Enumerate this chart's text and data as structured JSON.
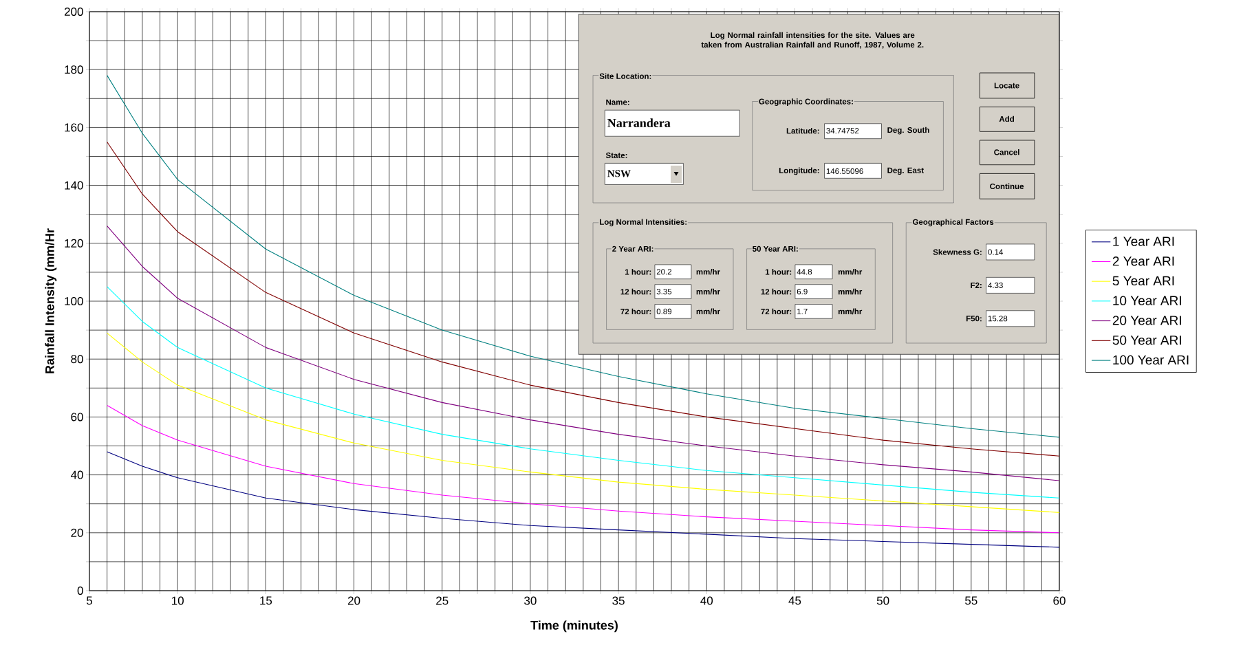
{
  "chart_data": {
    "type": "line",
    "xlabel": "Time (minutes)",
    "ylabel": "Rainfall Intensity (mm/Hr",
    "x": [
      6,
      8,
      10,
      15,
      20,
      25,
      30,
      35,
      40,
      45,
      50,
      55,
      60
    ],
    "series": [
      {
        "name": "1 Year ARI",
        "color": "#000080",
        "values": [
          48,
          43,
          39,
          32,
          28,
          25,
          22.5,
          21,
          19.5,
          18,
          17,
          16,
          15
        ]
      },
      {
        "name": "2 Year ARI",
        "color": "#ff00ff",
        "values": [
          64,
          57,
          52,
          43,
          37,
          33,
          30,
          27.5,
          25.5,
          24,
          22.5,
          21,
          20
        ]
      },
      {
        "name": "5 Year ARI",
        "color": "#ffff00",
        "values": [
          89,
          79,
          71,
          59,
          51,
          45,
          41,
          37.5,
          35,
          33,
          31,
          29,
          27
        ]
      },
      {
        "name": "10 Year ARI",
        "color": "#00ffff",
        "values": [
          105,
          93,
          84,
          70,
          61,
          54,
          49,
          45,
          41.5,
          39,
          36.5,
          34,
          32
        ]
      },
      {
        "name": "20 Year ARI",
        "color": "#800080",
        "values": [
          126,
          112,
          101,
          84,
          73,
          65,
          59,
          54,
          50,
          46.5,
          43.5,
          41,
          38
        ]
      },
      {
        "name": "50 Year ARI",
        "color": "#800000",
        "values": [
          155,
          137,
          124,
          103,
          89,
          79,
          71,
          65,
          60,
          56,
          52,
          49,
          46.5
        ]
      },
      {
        "name": "100 Year ARI",
        "color": "#008080",
        "values": [
          178,
          158,
          142,
          118,
          102,
          90,
          81,
          74,
          68,
          63,
          59.5,
          56,
          53
        ]
      }
    ],
    "xlim": [
      5,
      60
    ],
    "xticks": [
      5,
      {
        "value": 6,
        "label": null
      },
      {
        "value": 7,
        "label": null
      },
      {
        "value": 8,
        "label": null
      },
      {
        "value": 9,
        "label": null
      },
      10,
      {
        "value": 11,
        "label": null
      },
      {
        "value": 12,
        "label": null
      },
      {
        "value": 13,
        "label": null
      },
      {
        "value": 14,
        "label": null
      },
      15,
      {
        "value": 16,
        "label": null
      },
      {
        "value": 17,
        "label": null
      },
      {
        "value": 18,
        "label": null
      },
      {
        "value": 19,
        "label": null
      },
      20,
      {
        "value": 21,
        "label": null
      },
      {
        "value": 22,
        "label": null
      },
      {
        "value": 23,
        "label": null
      },
      {
        "value": 24,
        "label": null
      },
      25,
      {
        "value": 26,
        "label": null
      },
      {
        "value": 27,
        "label": null
      },
      {
        "value": 28,
        "label": null
      },
      {
        "value": 29,
        "label": null
      },
      30,
      {
        "value": 31,
        "label": null
      },
      {
        "value": 32,
        "label": null
      },
      {
        "value": 33,
        "label": null
      },
      {
        "value": 34,
        "label": null
      },
      35,
      {
        "value": 36,
        "label": null
      },
      {
        "value": 37,
        "label": null
      },
      {
        "value": 38,
        "label": null
      },
      {
        "value": 39,
        "label": null
      },
      40,
      {
        "value": 41,
        "label": null
      },
      {
        "value": 42,
        "label": null
      },
      {
        "value": 43,
        "label": null
      },
      {
        "value": 44,
        "label": null
      },
      45,
      {
        "value": 46,
        "label": null
      },
      {
        "value": 47,
        "label": null
      },
      {
        "value": 48,
        "label": null
      },
      {
        "value": 49,
        "label": null
      },
      50,
      {
        "value": 51,
        "label": null
      },
      {
        "value": 52,
        "label": null
      },
      {
        "value": 53,
        "label": null
      },
      {
        "value": 54,
        "label": null
      },
      55,
      {
        "value": 56,
        "label": null
      },
      {
        "value": 57,
        "label": null
      },
      {
        "value": 58,
        "label": null
      },
      {
        "value": 59,
        "label": null
      },
      60
    ],
    "ylim": [
      0,
      200
    ],
    "yticks": [
      0,
      {
        "value": 10,
        "label": null
      },
      20,
      {
        "value": 30,
        "label": null
      },
      40,
      {
        "value": 50,
        "label": null
      },
      60,
      {
        "value": 70,
        "label": null
      },
      80,
      {
        "value": 90,
        "label": null
      },
      100,
      {
        "value": 110,
        "label": null
      },
      120,
      {
        "value": 130,
        "label": null
      },
      140,
      {
        "value": 150,
        "label": null
      },
      160,
      {
        "value": 170,
        "label": null
      },
      180,
      {
        "value": 190,
        "label": null
      },
      200
    ],
    "grid": true,
    "legend": "right",
    "line_style": "solid",
    "annotations": [
      "Log Normal rainfall intensities for the site.  Values are taken from Australian Rainfall and Runoff, 1987, Volume 2.",
      "Site Location:",
      "Name:",
      "Narrandera",
      "State:",
      "NSW",
      "Geographic Coordinates:",
      "Latitude:",
      "34.74752",
      "Deg. South",
      "Longitude:",
      "146.55096",
      "Deg. East",
      "Locate",
      "Add",
      "Cancel",
      "Continue",
      "Log Normal Intensities:",
      "2 Year ARI:",
      "1 hour:",
      "20.2",
      "mm/hr",
      "12 hour:",
      "3.35",
      "mm/hr",
      "72 hour:",
      "0.89",
      "mm/hr",
      "50 Year ARI:",
      "1 hour:",
      "44.8",
      "mm/hr",
      "12 hour:",
      "6.9",
      "mm/hr",
      "72 hour:",
      "1.7",
      "mm/hr",
      "Geographical Factors",
      "Skewness G:",
      "0.14",
      "F2:",
      "4.33",
      "F50:",
      "15.28"
    ]
  }
}
